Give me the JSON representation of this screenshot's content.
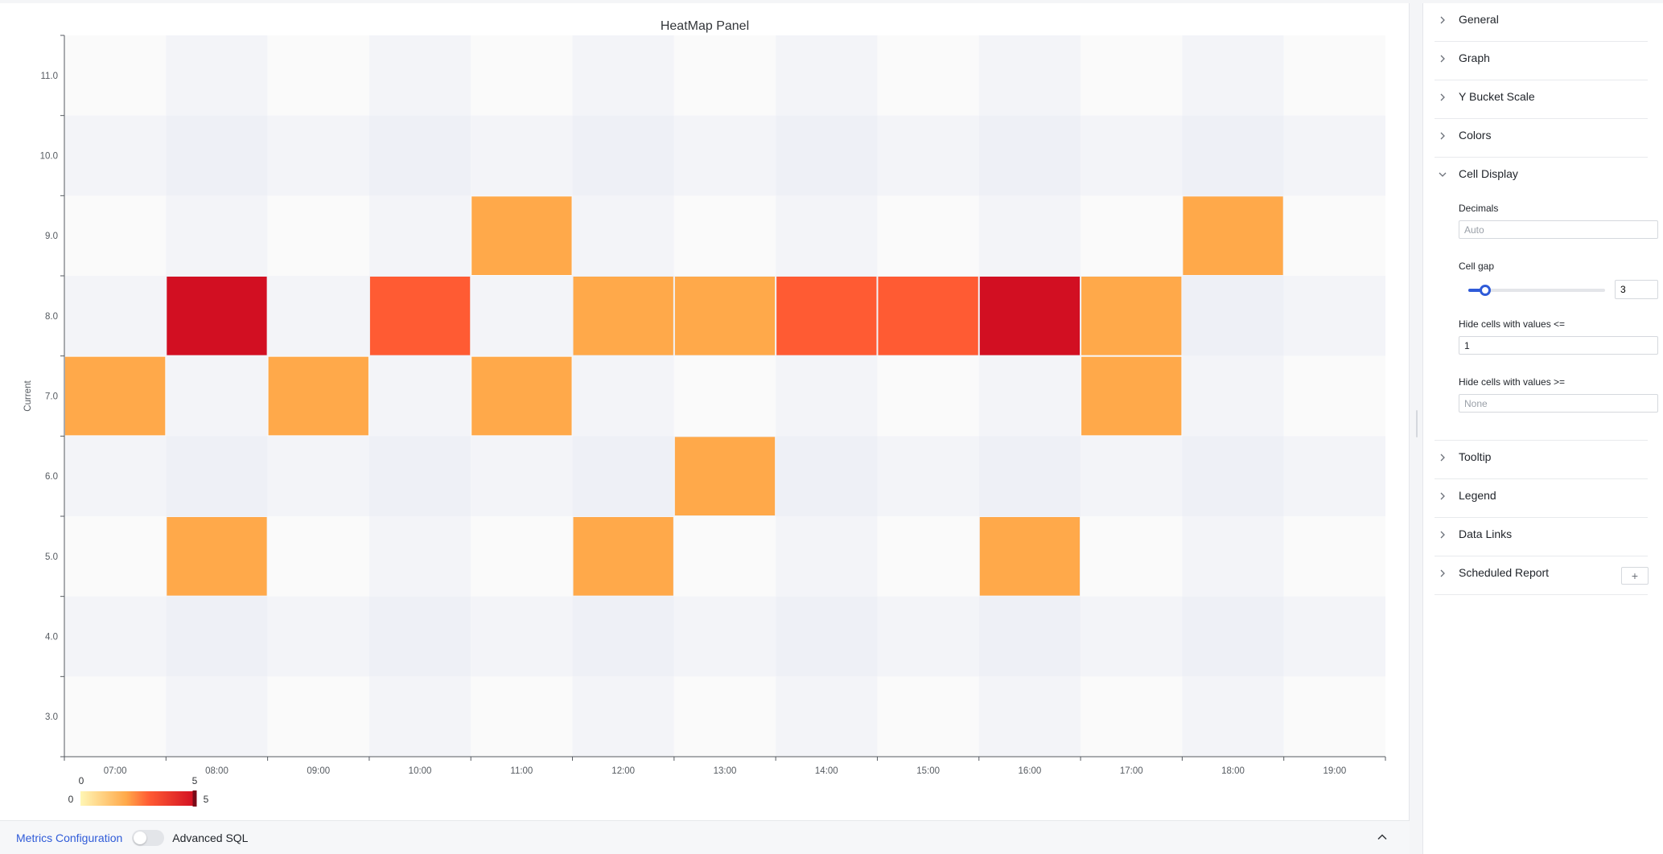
{
  "chart": {
    "title": "HeatMap Panel",
    "y_axis_label": "Current"
  },
  "chart_data": {
    "type": "heatmap",
    "title": "HeatMap Panel",
    "ylabel": "Current",
    "x_categories": [
      "07:00",
      "08:00",
      "09:00",
      "10:00",
      "11:00",
      "12:00",
      "13:00",
      "14:00",
      "15:00",
      "16:00",
      "17:00",
      "18:00",
      "19:00"
    ],
    "y_buckets": [
      "11.0",
      "10.0",
      "9.0",
      "8.0",
      "7.0",
      "6.0",
      "5.0",
      "4.0",
      "3.0"
    ],
    "values": [
      [
        0,
        0,
        0,
        0,
        0,
        0,
        0,
        0,
        0,
        0,
        0,
        0,
        0
      ],
      [
        0,
        0,
        0,
        0,
        0,
        0,
        0,
        0,
        0,
        0,
        0,
        0,
        0
      ],
      [
        0,
        0,
        0,
        0,
        2,
        0,
        0,
        0,
        0,
        0,
        0,
        2,
        0
      ],
      [
        0,
        5,
        0,
        3,
        0,
        2,
        2,
        3,
        3,
        5,
        2,
        0,
        0
      ],
      [
        2,
        0,
        2,
        0,
        2,
        0,
        0,
        0,
        0,
        0,
        2,
        0,
        0
      ],
      [
        0,
        0,
        0,
        0,
        0,
        0,
        2,
        0,
        0,
        0,
        0,
        0,
        0
      ],
      [
        0,
        2,
        0,
        0,
        0,
        2,
        0,
        0,
        0,
        2,
        0,
        0,
        0
      ],
      [
        0,
        0,
        0,
        0,
        0,
        0,
        0,
        0,
        0,
        0,
        0,
        0,
        0
      ],
      [
        0,
        0,
        0,
        0,
        0,
        0,
        0,
        0,
        0,
        0,
        0,
        0,
        0
      ]
    ],
    "hide_cells_lte": 1,
    "color_scale": {
      "min": 0,
      "max": 5,
      "from": "#fff6b5",
      "mid": "#ffa94a",
      "hot": "#ff5b33",
      "to": "#d20f22"
    },
    "legend": {
      "range_min_label": "0",
      "range_max_label": "5",
      "min_label": "0",
      "max_label": "5",
      "position": "bottom-left"
    },
    "grid": false
  },
  "bottom_bar": {
    "metrics_tab": "Metrics Configuration",
    "advanced_sql_label": "Advanced SQL",
    "advanced_sql_on": false,
    "collapse_icon": "chevron-up-icon"
  },
  "options": {
    "sections": [
      {
        "label": "General",
        "expanded": false
      },
      {
        "label": "Graph",
        "expanded": false
      },
      {
        "label": "Y Bucket Scale",
        "expanded": false
      },
      {
        "label": "Colors",
        "expanded": false
      },
      {
        "label": "Cell Display",
        "expanded": true
      },
      {
        "label": "Tooltip",
        "expanded": false
      },
      {
        "label": "Legend",
        "expanded": false
      },
      {
        "label": "Data Links",
        "expanded": false
      },
      {
        "label": "Scheduled Report",
        "expanded": false,
        "add_button": "+"
      }
    ],
    "cell_display": {
      "decimals_label": "Decimals",
      "decimals_placeholder": "Auto",
      "cell_gap_label": "Cell gap",
      "cell_gap_value": "3",
      "cell_gap_fraction": 0.08,
      "hide_lte_label": "Hide cells with values <=",
      "hide_lte_value": "1",
      "hide_gte_label": "Hide cells with values >=",
      "hide_gte_placeholder": "None"
    }
  }
}
